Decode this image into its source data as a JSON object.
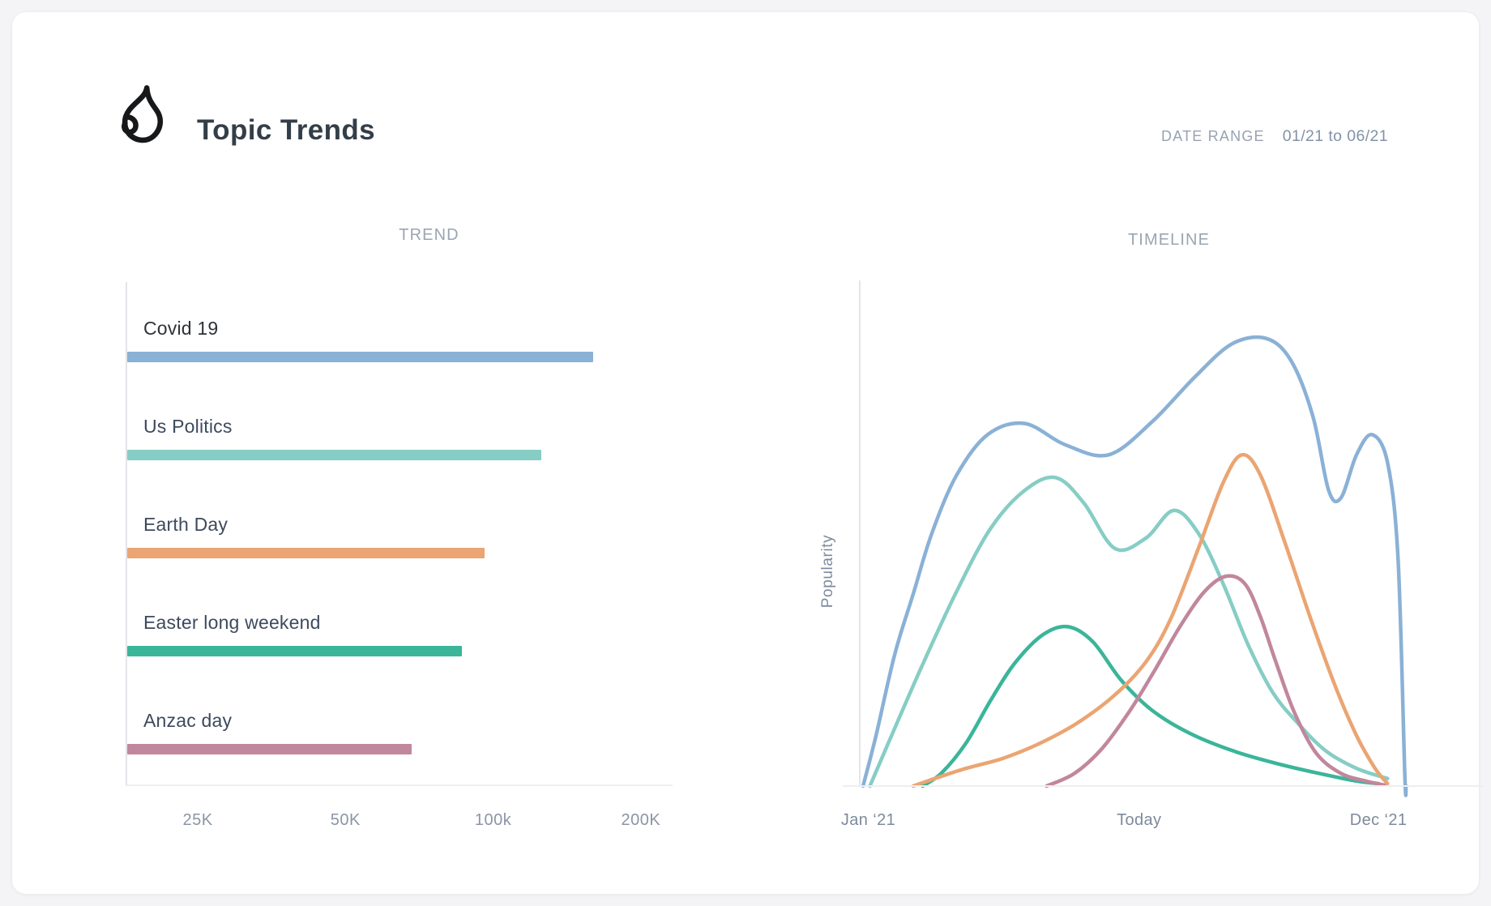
{
  "header": {
    "title": "Topic Trends",
    "date_range_label": "DATE RANGE",
    "date_range_value": "01/21 to 06/21"
  },
  "trend": {
    "panel_title": "TREND",
    "items": [
      {
        "label": "Covid 19",
        "color": "#8ab1d6",
        "label_color": "#2e3338"
      },
      {
        "label": "Us Politics",
        "color": "#86cdc5",
        "label_color": "#3d4a5e"
      },
      {
        "label": "Earth Day",
        "color": "#eaa573",
        "label_color": "#3d4a5e"
      },
      {
        "label": "Easter long weekend",
        "color": "#3bb59a",
        "label_color": "#3d4a5e"
      },
      {
        "label": "Anzac day",
        "color": "#c1879c",
        "label_color": "#3d4a5e"
      }
    ],
    "axis": {
      "tick_base": 25000,
      "base_pos_pct": 13.2,
      "pct_per_octave": 27.0
    }
  },
  "timeline": {
    "panel_title": "TIMELINE",
    "y_axis_label": "Popularity",
    "x_ticks": [
      {
        "label": "Jan ‘21",
        "pos_pct": 1.5
      },
      {
        "label": "Today",
        "pos_pct": 45.2
      },
      {
        "label": "Dec ‘21",
        "pos_pct": 83.8
      }
    ]
  },
  "chart_data": [
    {
      "type": "bar",
      "title": "TREND",
      "orientation": "horizontal",
      "x_scale": "log2",
      "categories": [
        "Covid 19",
        "Us Politics",
        "Earth Day",
        "Easter long weekend",
        "Anzac day"
      ],
      "values": [
        160000,
        125000,
        96000,
        86000,
        68000
      ],
      "x_ticks": [
        {
          "label": "25K",
          "value": 25000
        },
        {
          "label": "50K",
          "value": 50000
        },
        {
          "label": "100k",
          "value": 100000
        },
        {
          "label": "200K",
          "value": 200000
        }
      ],
      "grid": false
    },
    {
      "type": "line",
      "title": "TIMELINE",
      "ylabel": "Popularity",
      "x_axis_note": "x in % of Jan 21 - beyond Dec 21 span, y popularity 0-100",
      "x_tick_labels": [
        "Jan ‘21",
        "Today",
        "Dec ‘21"
      ],
      "legend_position": "none",
      "series": [
        {
          "name": "Easter long weekend",
          "color": "#3bb59a",
          "points": [
            [
              10,
              0
            ],
            [
              13,
              2.5
            ],
            [
              17,
              8.5
            ],
            [
              21,
              17
            ],
            [
              25,
              24.5
            ],
            [
              29.5,
              30
            ],
            [
              33.5,
              31.5
            ],
            [
              37.5,
              28.5
            ],
            [
              42,
              21
            ],
            [
              47,
              15
            ],
            [
              53,
              10.5
            ],
            [
              60,
              7
            ],
            [
              67,
              4.5
            ],
            [
              74,
              2.5
            ],
            [
              80,
              1
            ],
            [
              83.5,
              0.5
            ]
          ]
        },
        {
          "name": "Us Politics",
          "color": "#86cdc5",
          "points": [
            [
              1.5,
              0
            ],
            [
              5,
              10
            ],
            [
              10,
              24
            ],
            [
              15.5,
              38.5
            ],
            [
              21,
              51
            ],
            [
              26.5,
              58.5
            ],
            [
              31.5,
              61
            ],
            [
              36,
              56
            ],
            [
              41,
              47
            ],
            [
              46,
              49
            ],
            [
              50.5,
              54.5
            ],
            [
              54.5,
              50
            ],
            [
              58.5,
              40
            ],
            [
              62.5,
              28
            ],
            [
              66.5,
              18.5
            ],
            [
              70.5,
              12.5
            ],
            [
              75,
              7
            ],
            [
              80,
              3.5
            ],
            [
              85,
              1.5
            ]
          ]
        },
        {
          "name": "Earth Day",
          "color": "#eaa573",
          "points": [
            [
              8.5,
              0
            ],
            [
              12,
              1.5
            ],
            [
              17,
              3.5
            ],
            [
              23,
              5.5
            ],
            [
              29,
              8.5
            ],
            [
              35,
              12.5
            ],
            [
              41,
              18
            ],
            [
              46,
              24.5
            ],
            [
              50,
              33
            ],
            [
              54.5,
              47
            ],
            [
              58.5,
              60
            ],
            [
              61.5,
              65.5
            ],
            [
              64.5,
              61.5
            ],
            [
              68.5,
              48
            ],
            [
              72.5,
              33.5
            ],
            [
              76.5,
              20
            ],
            [
              80,
              10
            ],
            [
              83,
              3.5
            ],
            [
              85,
              0.5
            ]
          ]
        },
        {
          "name": "Anzac day",
          "color": "#c1879c",
          "points": [
            [
              30,
              0
            ],
            [
              34.5,
              2.5
            ],
            [
              39,
              7.5
            ],
            [
              43.5,
              15
            ],
            [
              47.5,
              23
            ],
            [
              51.5,
              31.5
            ],
            [
              55.5,
              38.5
            ],
            [
              59,
              41.5
            ],
            [
              62,
              40
            ],
            [
              64.5,
              33.5
            ],
            [
              67,
              24.5
            ],
            [
              70,
              14.5
            ],
            [
              73.5,
              6.5
            ],
            [
              77.5,
              2.5
            ],
            [
              81.5,
              1
            ],
            [
              84.5,
              0.2
            ]
          ]
        },
        {
          "name": "Covid 19",
          "color": "#8ab1d6",
          "points": [
            [
              0.4,
              0
            ],
            [
              2.5,
              10
            ],
            [
              5.5,
              26
            ],
            [
              8.5,
              38
            ],
            [
              11.5,
              50
            ],
            [
              15.5,
              61.5
            ],
            [
              20.5,
              69.5
            ],
            [
              26.5,
              71.7
            ],
            [
              33,
              67.5
            ],
            [
              40,
              65.5
            ],
            [
              47,
              72
            ],
            [
              54,
              81
            ],
            [
              60,
              87.5
            ],
            [
              65.5,
              88.5
            ],
            [
              69.5,
              84
            ],
            [
              73,
              73
            ],
            [
              75.5,
              58.5
            ],
            [
              77.5,
              57
            ],
            [
              80,
              65.5
            ],
            [
              82.5,
              69.5
            ],
            [
              85,
              64
            ],
            [
              86.7,
              45
            ],
            [
              87.8,
              2
            ],
            [
              88,
              0
            ]
          ]
        }
      ]
    }
  ]
}
